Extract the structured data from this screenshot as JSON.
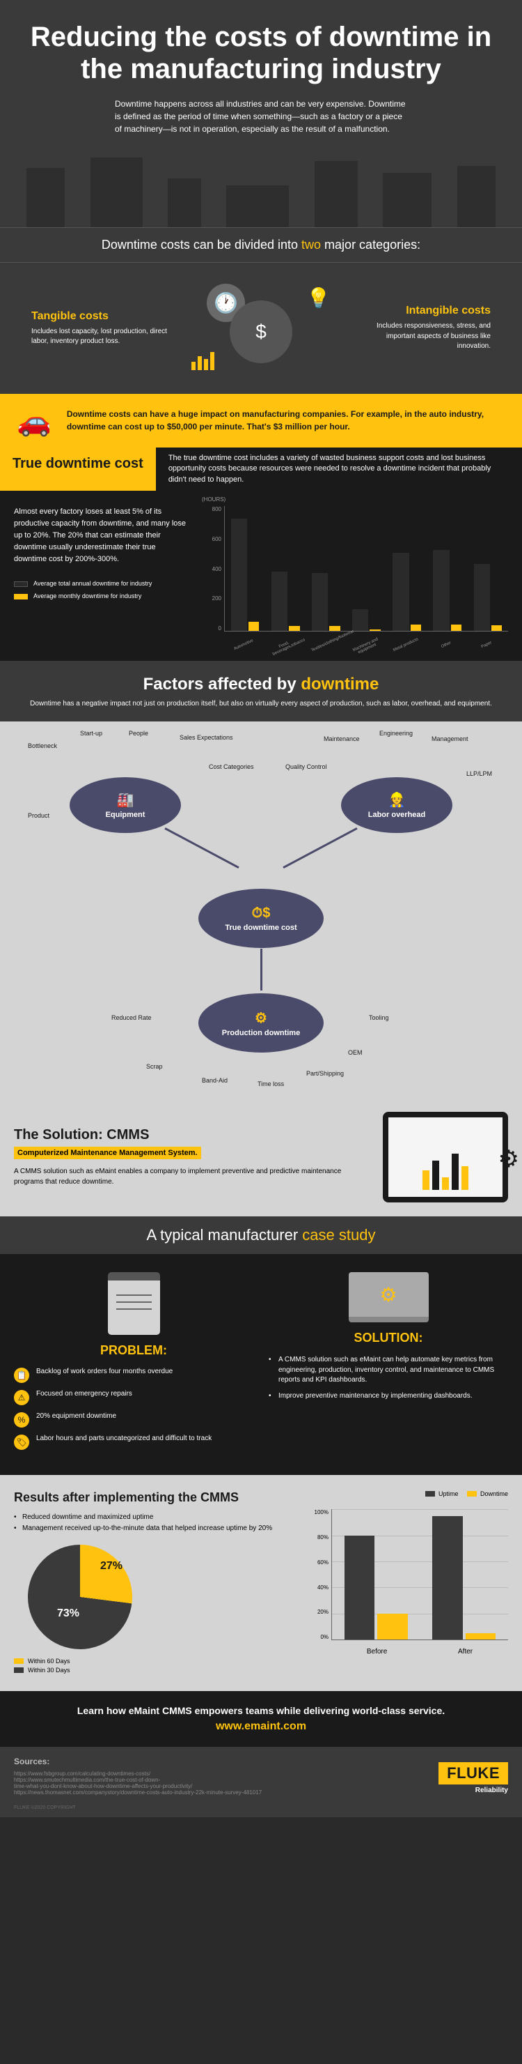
{
  "colors": {
    "accent": "#ffc20e",
    "dark": "#1a1a1a",
    "mid": "#3a3a3a",
    "light": "#d4d4d4",
    "oval": "#4a4a6a"
  },
  "hero": {
    "title": "Reducing the costs of downtime in the manufacturing industry",
    "sub": "Downtime happens across all industries and can be very expensive. Downtime is defined as the period of time when something—such as a factory or a piece of machinery—is not in operation, especially as the result of a malfunction."
  },
  "divide": {
    "prefix": "Downtime costs can be divided into ",
    "hl": "two",
    "suffix": " major categories:"
  },
  "tangible": {
    "title": "Tangible costs",
    "desc": "Includes lost capacity, lost production, direct labor, inventory product loss."
  },
  "intangible": {
    "title": "Intangible costs",
    "desc": "Includes responsiveness, stress, and important aspects of business like innovation."
  },
  "car": {
    "text": "Downtime costs can have a huge impact on manufacturing companies. For example, in the auto industry, downtime can cost up to $50,000 per minute. That's $3 million per hour."
  },
  "truecost": {
    "tag": "True downtime cost",
    "desc": "The true downtime cost includes a variety of wasted business support costs and lost business opportunity costs because resources were needed to resolve a downtime incident that probably didn't need to happen.",
    "left": "Almost every factory loses at least 5% of its productive capacity from downtime, and many lose up to 20%. The 20% that can estimate their downtime usually underestimate their true downtime cost by 200%-300%.",
    "leg_a": "Average total annual downtime for industry",
    "leg_m": "Average monthly downtime for industry",
    "yaxis_label": "(HOURS)",
    "yticks": [
      "800",
      "600",
      "400",
      "200",
      "0"
    ],
    "categories": [
      "Automotive",
      "Food, beverages,tobacco",
      "Textiles/clothing/footwear",
      "Machinery and equipment",
      "Metal products",
      "Other",
      "Paper"
    ],
    "annual": [
      720,
      380,
      370,
      140,
      500,
      520,
      430
    ],
    "monthly": [
      60,
      32,
      31,
      12,
      42,
      43,
      36
    ],
    "ylim": 800
  },
  "factors": {
    "hdr_pre": "Factors affected by ",
    "hdr_hl": "downtime",
    "sub": "Downtime has a negative impact not just on production itself, but also on virtually every aspect of production, such as labor, overhead, and equipment.",
    "ovals": {
      "equip": "Equipment",
      "labor": "Labor overhead",
      "center": "True downtime cost",
      "prod": "Production downtime"
    },
    "equip_labels": [
      "Bottleneck",
      "Start-up",
      "People",
      "Sales Expectations",
      "Cost Categories",
      "Product"
    ],
    "labor_labels": [
      "Quality Control",
      "Maintenance",
      "Engineering",
      "Management",
      "LLP/LPM"
    ],
    "prod_labels": [
      "Reduced Rate",
      "Scrap",
      "Band-Aid",
      "Time loss",
      "Part/Shipping",
      "OEM",
      "Tooling"
    ]
  },
  "solution": {
    "title": "The Solution: CMMS",
    "sub": "Computerized Maintenance Management System.",
    "txt": "A CMMS solution such as eMaint enables a company to implement preventive and predictive maintenance programs that reduce downtime."
  },
  "case": {
    "hdr_pre": "A typical manufacturer ",
    "hdr_hl": "case study",
    "problem": "PROBLEM:",
    "problems": [
      "Backlog of work orders four months overdue",
      "Focused on emergency repairs",
      "20% equipment downtime",
      "Labor hours and parts uncategorized and difficult to track"
    ],
    "solution": "SOLUTION:",
    "solutions": [
      "A CMMS solution such as eMaint can help automate key metrics from engineering, production, inventory control, and maintenance to CMMS reports and KPI dashboards.",
      "Improve preventive maintenance by implementing dashboards."
    ]
  },
  "results": {
    "title": "Results after implementing the CMMS",
    "bullets": [
      "Reduced downtime and maximized uptime",
      "Management received up-to-the-minute data that helped increase uptime by 20%"
    ],
    "pie": {
      "within60": 27,
      "within30": 73,
      "leg60": "Within 60 Days",
      "leg30": "Within 30 Days"
    },
    "chart": {
      "leg_up": "Uptime",
      "leg_down": "Downtime",
      "yticks": [
        "100%",
        "80%",
        "60%",
        "40%",
        "20%",
        "0%"
      ],
      "xlabels": [
        "Before",
        "After"
      ],
      "before": {
        "uptime": 80,
        "downtime": 20
      },
      "after": {
        "uptime": 95,
        "downtime": 5
      }
    }
  },
  "cta": {
    "text": "Learn how eMaint CMMS empowers teams while delivering world-class service.",
    "url": "www.emaint.com"
  },
  "sources": {
    "hdr": "Sources:",
    "items": [
      "https://www.fsbgroup.com/calculating-downtimes-costs/",
      "https://www.smutechmultimedia.com/the-true-cost-of-down-",
      "time-what-you-dont-know-about-how-downtime-affects-your-productivity/",
      "https://news.thomasnet.com/companystory/downtime-costs-auto-industry-22k-minute-survey-481017"
    ]
  },
  "logo": {
    "brand": "FLUKE",
    "sub": "Reliability"
  },
  "copy": "FLUKE ©2020 COPYRIGHT"
}
